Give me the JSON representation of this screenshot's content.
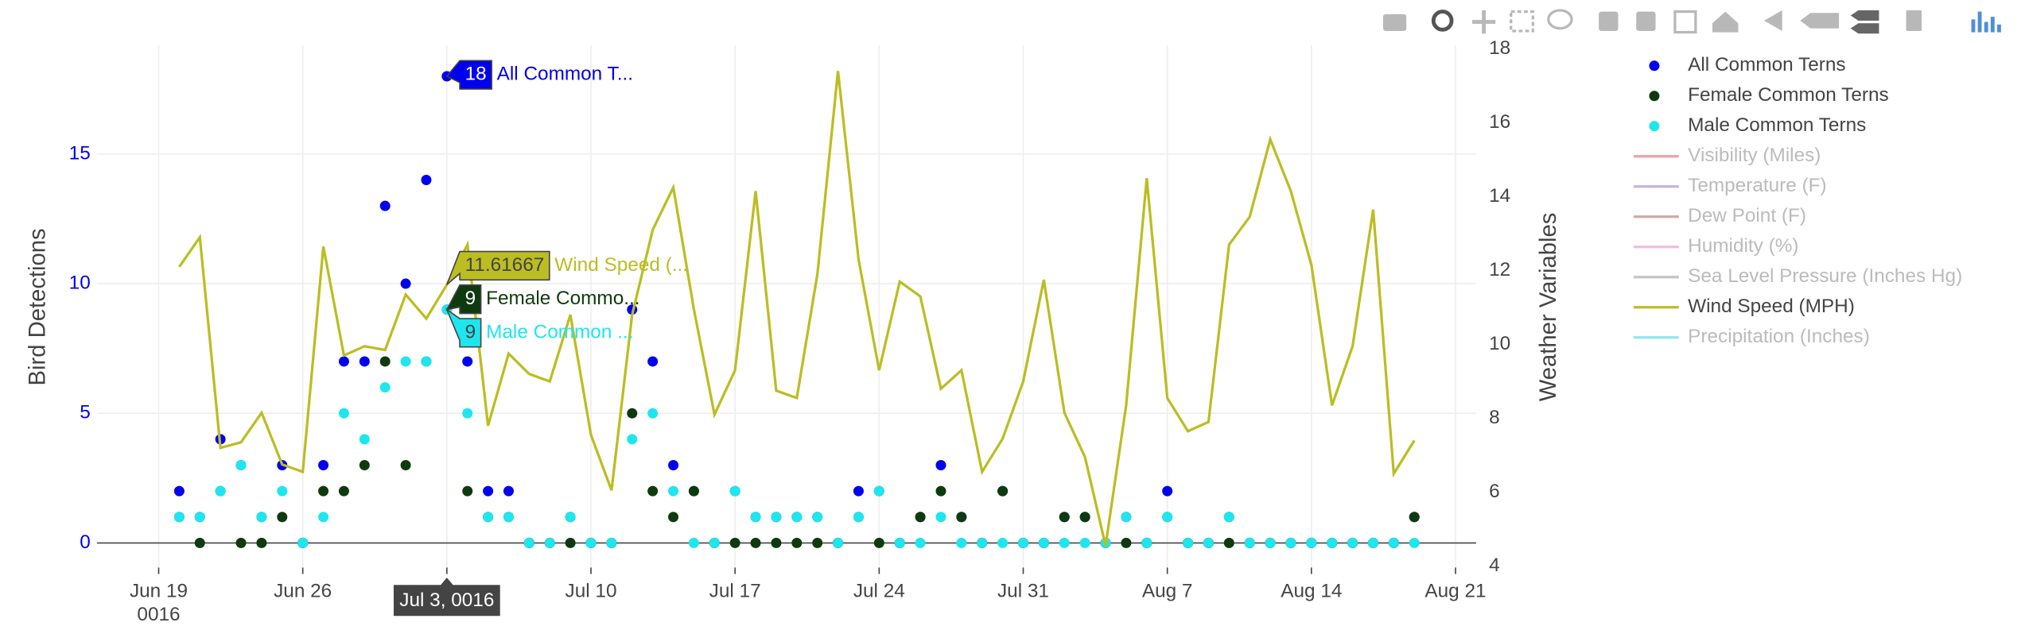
{
  "chart_data": {
    "type": "scatter",
    "x": [
      "0016-06-20",
      "0016-06-21",
      "0016-06-22",
      "0016-06-23",
      "0016-06-24",
      "0016-06-25",
      "0016-06-26",
      "0016-06-27",
      "0016-06-28",
      "0016-06-29",
      "0016-06-30",
      "0016-07-01",
      "0016-07-02",
      "0016-07-03",
      "0016-07-04",
      "0016-07-05",
      "0016-07-06",
      "0016-07-07",
      "0016-07-08",
      "0016-07-09",
      "0016-07-10",
      "0016-07-11",
      "0016-07-12",
      "0016-07-13",
      "0016-07-14",
      "0016-07-15",
      "0016-07-16",
      "0016-07-17",
      "0016-07-18",
      "0016-07-19",
      "0016-07-20",
      "0016-07-21",
      "0016-07-22",
      "0016-07-23",
      "0016-07-24",
      "0016-07-25",
      "0016-07-26",
      "0016-07-27",
      "0016-07-28",
      "0016-07-29",
      "0016-07-30",
      "0016-07-31",
      "0016-08-01",
      "0016-08-02",
      "0016-08-03",
      "0016-08-04",
      "0016-08-05",
      "0016-08-06",
      "0016-08-07",
      "0016-08-08",
      "0016-08-09",
      "0016-08-10",
      "0016-08-11",
      "0016-08-12",
      "0016-08-13",
      "0016-08-14",
      "0016-08-15",
      "0016-08-16",
      "0016-08-17",
      "0016-08-18",
      "0016-08-19"
    ],
    "series": [
      {
        "name": "All Common Terns",
        "type": "scatter",
        "color": "#0000ee",
        "values": [
          2,
          1,
          4,
          3,
          1,
          3,
          0,
          3,
          7,
          7,
          13,
          10,
          14,
          18,
          7,
          2,
          2,
          0,
          0,
          1,
          0,
          0,
          9,
          7,
          3,
          2,
          0,
          2,
          1,
          1,
          1,
          1,
          0,
          2,
          2,
          0,
          1,
          3,
          1,
          0,
          2,
          0,
          0,
          1,
          1,
          0,
          1,
          0,
          2,
          0,
          0,
          1,
          0,
          0,
          0,
          0,
          0,
          0,
          0,
          0,
          1
        ]
      },
      {
        "name": "Female Common Terns",
        "type": "scatter",
        "color": "#0f3a0f",
        "values": [
          1,
          0,
          2,
          0,
          0,
          1,
          0,
          2,
          2,
          3,
          7,
          3,
          7,
          9,
          2,
          1,
          1,
          0,
          0,
          0,
          0,
          0,
          5,
          2,
          1,
          2,
          0,
          0,
          0,
          0,
          0,
          0,
          0,
          1,
          0,
          0,
          1,
          2,
          1,
          0,
          2,
          0,
          0,
          1,
          1,
          0,
          0,
          0,
          1,
          0,
          0,
          0,
          0,
          0,
          0,
          0,
          0,
          0,
          0,
          0,
          1
        ]
      },
      {
        "name": "Male Common Terns",
        "type": "scatter",
        "color": "#1ee6ee",
        "values": [
          1,
          1,
          2,
          3,
          1,
          2,
          0,
          1,
          5,
          4,
          6,
          7,
          7,
          9,
          5,
          1,
          1,
          0,
          0,
          1,
          0,
          0,
          4,
          5,
          2,
          0,
          0,
          2,
          1,
          1,
          1,
          1,
          0,
          1,
          2,
          0,
          0,
          1,
          0,
          0,
          0,
          0,
          0,
          0,
          0,
          0,
          1,
          0,
          1,
          0,
          0,
          1,
          0,
          0,
          0,
          0,
          0,
          0,
          0,
          0,
          0
        ]
      },
      {
        "name": "Visibility (Miles)",
        "type": "line",
        "color": "#eba3a3",
        "visible": "legendonly"
      },
      {
        "name": "Temperature (F)",
        "type": "line",
        "color": "#c6b3dc",
        "visible": "legendonly"
      },
      {
        "name": "Dew Point (F)",
        "type": "line",
        "color": "#cbaaa6",
        "visible": "legendonly"
      },
      {
        "name": "Humidity (%)",
        "type": "line",
        "color": "#f2bbe4",
        "visible": "legendonly"
      },
      {
        "name": "Sea Level Pressure (Inches Hg)",
        "type": "line",
        "color": "#c4c4c4",
        "visible": "legendonly"
      },
      {
        "name": "Wind Speed (MPH)",
        "type": "line",
        "color": "#bcbd22",
        "axis": "y2",
        "values": [
          12.1,
          12.9,
          7.2,
          7.35,
          8.15,
          6.75,
          6.55,
          12.65,
          9.7,
          9.95,
          9.85,
          11.35,
          10.7,
          11.61667,
          12.7,
          7.8,
          9.75,
          9.2,
          9.0,
          10.8,
          7.55,
          6.05,
          10.8,
          13.1,
          14.25,
          10.95,
          8.1,
          9.3,
          14.15,
          8.75,
          8.55,
          11.9,
          17.4,
          12.3,
          9.3,
          11.7,
          11.3,
          8.8,
          9.3,
          6.55,
          7.45,
          9.0,
          11.75,
          8.15,
          6.95,
          4.55,
          8.35,
          14.5,
          8.55,
          7.65,
          7.9,
          12.7,
          13.45,
          15.55,
          14.15,
          12.15,
          8.35,
          9.95,
          13.65,
          6.5,
          7.4
        ]
      },
      {
        "name": "Precipitation (Inches)",
        "type": "line",
        "color": "#92e6ee",
        "visible": "legendonly"
      }
    ],
    "y_label": "Bird Detections",
    "y2_label": "Weather Variables",
    "xlim": [
      "0016-06-16",
      "0016-08-22"
    ],
    "xticks": [
      {
        "value": "0016-06-19",
        "label": "Jun 19"
      },
      {
        "value": "0016-06-26",
        "label": "Jun 26"
      },
      {
        "value": "0016-07-03",
        "label": "Jul 3"
      },
      {
        "value": "0016-07-10",
        "label": "Jul 10"
      },
      {
        "value": "0016-07-17",
        "label": "Jul 17"
      },
      {
        "value": "0016-07-24",
        "label": "Jul 24"
      },
      {
        "value": "0016-07-31",
        "label": "Jul 31"
      },
      {
        "value": "0016-08-07",
        "label": "Aug 7"
      },
      {
        "value": "0016-08-14",
        "label": "Aug 14"
      },
      {
        "value": "0016-08-21",
        "label": "Aug 21"
      }
    ],
    "x_year_label": "0016",
    "ylim": [
      -0.95,
      19.2
    ],
    "yticks": [
      0,
      5,
      10,
      15
    ],
    "y2lim": [
      3.96,
      18.1
    ],
    "y2ticks": [
      4,
      6,
      8,
      10,
      12,
      14,
      16,
      18
    ],
    "grid": true,
    "legend": "right",
    "hover": {
      "x_label": "Jul 3, 0016",
      "index": 13,
      "items": [
        {
          "series": 0,
          "value": 18,
          "name": "All Common T..."
        },
        {
          "series": 8,
          "value": 11.61667,
          "name": "Wind Speed (..."
        },
        {
          "series": 1,
          "value": 9,
          "name": "Female Commo..."
        },
        {
          "series": 2,
          "value": 9,
          "name": "Male Common ..."
        }
      ]
    }
  }
}
